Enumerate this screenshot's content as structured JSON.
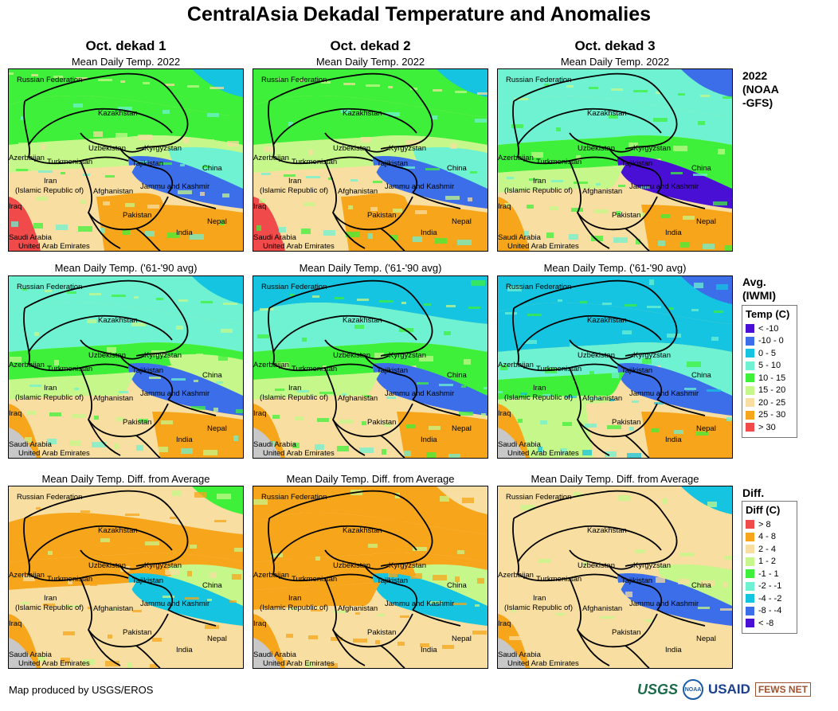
{
  "title": "CentralAsia Dekadal Temperature and Anomalies",
  "columns": [
    "Oct. dekad 1",
    "Oct. dekad 2",
    "Oct. dekad 3"
  ],
  "rows": [
    {
      "map_label": "Mean Daily Temp. 2022",
      "side_label": "2022\n(NOAA\n-GFS)",
      "palette": "temp"
    },
    {
      "map_label": "Mean Daily Temp. ('61-'90 avg)",
      "side_label": "Avg.\n(IWMI)",
      "palette": "temp"
    },
    {
      "map_label": "Mean Daily Temp. Diff. from Average",
      "side_label": "Diff.",
      "palette": "diff"
    }
  ],
  "places": {
    "russia": "Russian Federation",
    "kazakhstan": "Kazakhstan",
    "uzbekistan": "Uzbekistan",
    "kyrgyzstan": "Kyrgyzstan",
    "azerbaijan": "Azerbaijan",
    "turkmenistan": "Turkmenistan",
    "tajikistan": "Tajikistan",
    "china": "China",
    "iran": "Iran",
    "iran_sub": "(Islamic Republic of)",
    "afghanistan": "Afghanistan",
    "jammu": "Jammu and Kashmir",
    "iraq": "Iraq",
    "pakistan": "Pakistan",
    "nepal": "Nepal",
    "india": "India",
    "saudi": "Saudi Arabia",
    "uae": "United Arab Emirates"
  },
  "legend_temp": {
    "title": "Temp (C)",
    "items": [
      {
        "label": "< -10",
        "color": "#4a0fd4"
      },
      {
        "label": "-10 - 0",
        "color": "#3b6ee8"
      },
      {
        "label": "0 - 5",
        "color": "#14c4e0"
      },
      {
        "label": "5 - 10",
        "color": "#6ef2d2"
      },
      {
        "label": "10 - 15",
        "color": "#3ff03a"
      },
      {
        "label": "15 - 20",
        "color": "#c5f78a"
      },
      {
        "label": "20 - 25",
        "color": "#f8dea0"
      },
      {
        "label": "25 - 30",
        "color": "#f7a51a"
      },
      {
        "label": "> 30",
        "color": "#f04a4a"
      }
    ]
  },
  "legend_diff": {
    "title": "Diff (C)",
    "items": [
      {
        "label": "> 8",
        "color": "#f04a4a"
      },
      {
        "label": "4 - 8",
        "color": "#f7a51a"
      },
      {
        "label": "2 - 4",
        "color": "#f8dea0"
      },
      {
        "label": "1 - 2",
        "color": "#c5f78a"
      },
      {
        "label": "-1 - 1",
        "color": "#3ff03a"
      },
      {
        "label": "-2 - -1",
        "color": "#6ef2d2"
      },
      {
        "label": "-4 - -2",
        "color": "#14c4e0"
      },
      {
        "label": "-8 - -4",
        "color": "#3b6ee8"
      },
      {
        "label": "< -8",
        "color": "#4a0fd4"
      }
    ]
  },
  "footer": {
    "credit": "Map produced by USGS/EROS",
    "logos": {
      "usgs": "USGS",
      "noaa": "NOAA",
      "usaid": "USAID",
      "fews": "FEWS NET"
    }
  },
  "map_fills": {
    "r0c0": {
      "russia": "#3ff03a",
      "kazakhstan": "#3ff03a",
      "central": "#c5f78a",
      "turkmen": "#f8dea0",
      "iran": "#f8dea0",
      "pakistan": "#f7a51a",
      "india": "#f7a51a",
      "china_west": "#3b6ee8",
      "china_east": "#6ef2d2",
      "hot": "#f04a4a",
      "ne": "#14c4e0"
    },
    "r0c1": {
      "russia": "#3ff03a",
      "kazakhstan": "#3ff03a",
      "central": "#c5f78a",
      "turkmen": "#f8dea0",
      "iran": "#f8dea0",
      "pakistan": "#f7a51a",
      "india": "#f7a51a",
      "china_west": "#3b6ee8",
      "china_east": "#6ef2d2",
      "hot": "#f04a4a",
      "ne": "#14c4e0"
    },
    "r0c2": {
      "russia": "#6ef2d2",
      "kazakhstan": "#6ef2d2",
      "central": "#3ff03a",
      "turkmen": "#c5f78a",
      "iran": "#f8dea0",
      "pakistan": "#f8dea0",
      "india": "#f7a51a",
      "china_west": "#4a0fd4",
      "china_east": "#3ff03a",
      "hot": "#f7a51a",
      "ne": "#3b6ee8"
    },
    "r1c0": {
      "russia": "#6ef2d2",
      "kazakhstan": "#6ef2d2",
      "central": "#3ff03a",
      "turkmen": "#c5f78a",
      "iran": "#f8dea0",
      "pakistan": "#f8dea0",
      "india": "#f7a51a",
      "china_west": "#3b6ee8",
      "china_east": "#c5f78a",
      "hot": "#f7a51a",
      "ne": "#14c4e0"
    },
    "r1c1": {
      "russia": "#14c4e0",
      "kazakhstan": "#6ef2d2",
      "central": "#3ff03a",
      "turkmen": "#c5f78a",
      "iran": "#f8dea0",
      "pakistan": "#f8dea0",
      "india": "#f7a51a",
      "china_west": "#3b6ee8",
      "china_east": "#3ff03a",
      "hot": "#f7a51a",
      "ne": "#14c4e0"
    },
    "r1c2": {
      "russia": "#14c4e0",
      "kazakhstan": "#14c4e0",
      "central": "#6ef2d2",
      "turkmen": "#3ff03a",
      "iran": "#c5f78a",
      "pakistan": "#f8dea0",
      "india": "#f7a51a",
      "china_west": "#3b6ee8",
      "china_east": "#6ef2d2",
      "hot": "#f7a51a",
      "ne": "#3b6ee8"
    },
    "r2c0": {
      "russia": "#f8dea0",
      "kazakhstan": "#f7a51a",
      "central": "#f7a51a",
      "turkmen": "#f8dea0",
      "iran": "#f8dea0",
      "pakistan": "#f8dea0",
      "india": "#f8dea0",
      "china_west": "#14c4e0",
      "china_east": "#c5f78a",
      "hot": "#f7a51a",
      "ne": "#3ff03a"
    },
    "r2c1": {
      "russia": "#f7a51a",
      "kazakhstan": "#f7a51a",
      "central": "#f7a51a",
      "turkmen": "#f7a51a",
      "iran": "#f8dea0",
      "pakistan": "#f8dea0",
      "india": "#f8dea0",
      "china_west": "#14c4e0",
      "china_east": "#c5f78a",
      "hot": "#f7a51a",
      "ne": "#f8dea0"
    },
    "r2c2": {
      "russia": "#f8dea0",
      "kazakhstan": "#f8dea0",
      "central": "#f8dea0",
      "turkmen": "#f8dea0",
      "iran": "#f8dea0",
      "pakistan": "#f8dea0",
      "india": "#f8dea0",
      "china_west": "#3b6ee8",
      "china_east": "#c5f78a",
      "hot": "#f7a51a",
      "ne": "#14c4e0"
    }
  }
}
